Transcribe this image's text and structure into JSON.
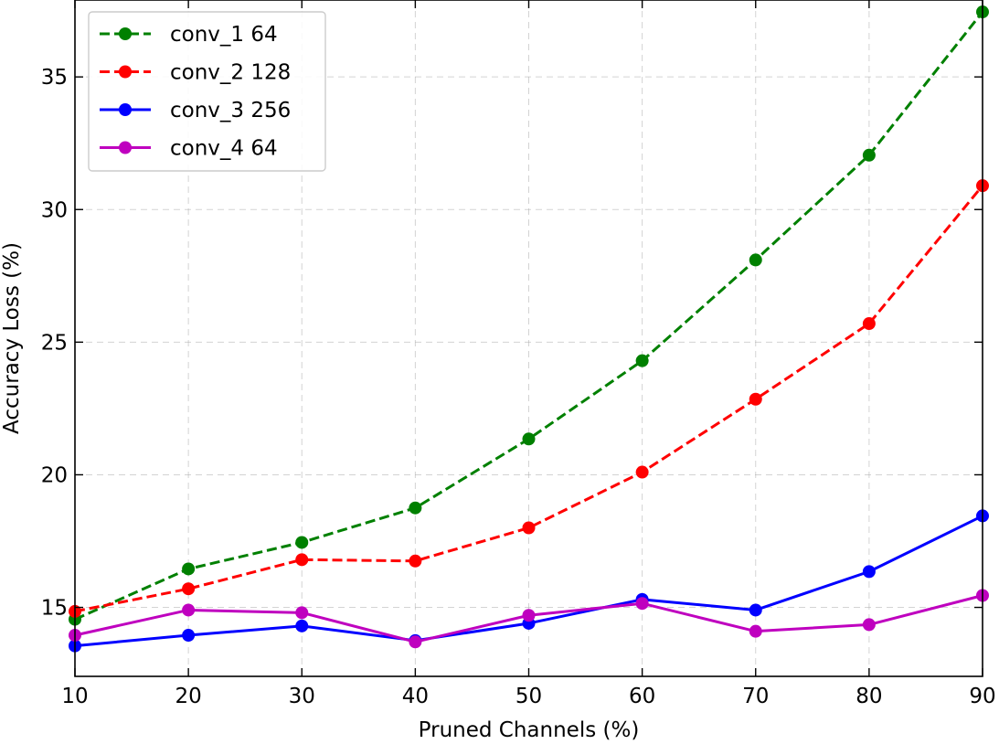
{
  "chart_data": {
    "type": "line",
    "xlabel": "Pruned Channels (%)",
    "ylabel": "Accuracy Loss (%)",
    "xlim": [
      10,
      90
    ],
    "ylim": [
      12.4,
      37.9
    ],
    "xticks": [
      10,
      20,
      30,
      40,
      50,
      60,
      70,
      80,
      90
    ],
    "yticks": [
      15,
      20,
      25,
      30,
      35
    ],
    "grid": true,
    "legend_position": "top-left",
    "x": [
      10,
      20,
      30,
      40,
      50,
      60,
      70,
      80,
      90
    ],
    "series": [
      {
        "name": "conv_1 64",
        "color": "#008000",
        "dash": "dashed",
        "values": [
          14.55,
          16.45,
          17.45,
          18.75,
          21.35,
          24.3,
          28.1,
          32.05,
          37.45
        ]
      },
      {
        "name": "conv_2 128",
        "color": "#ff0000",
        "dash": "dashed",
        "values": [
          14.85,
          15.7,
          16.8,
          16.75,
          18.0,
          20.1,
          22.85,
          25.7,
          30.9
        ]
      },
      {
        "name": "conv_3 256",
        "color": "#0000ff",
        "dash": "solid",
        "values": [
          13.55,
          13.95,
          14.3,
          13.75,
          14.4,
          15.3,
          14.9,
          16.35,
          18.45
        ]
      },
      {
        "name": "conv_4 64",
        "color": "#bf00bf",
        "dash": "solid",
        "values": [
          13.95,
          14.9,
          14.8,
          13.7,
          14.7,
          15.15,
          14.1,
          14.35,
          15.45
        ]
      }
    ]
  }
}
